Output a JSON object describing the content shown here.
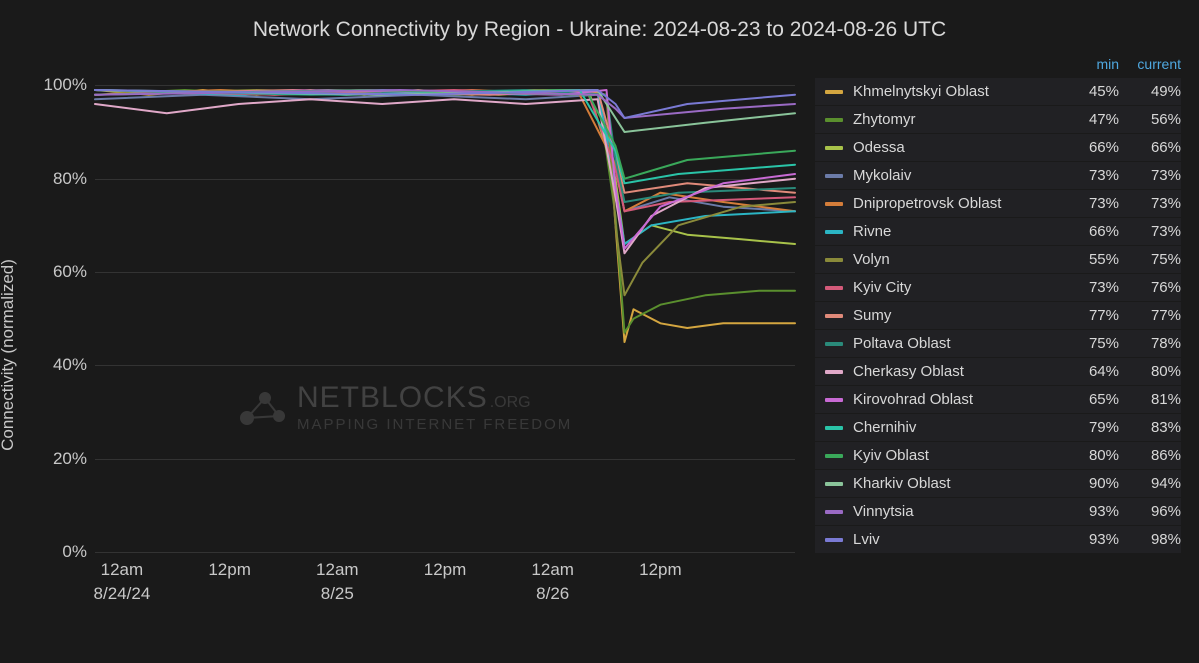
{
  "title": "Network Connectivity by Region - Ukraine: 2024-08-23 to 2024-08-26 UTC",
  "ylabel": "Connectivity (normalized)",
  "chart": {
    "type": "line",
    "background_color": "#1a1a1a",
    "grid_color": "#333333",
    "text_color": "#d0d0d0",
    "ylim": [
      0,
      105
    ],
    "ytick_step": 20,
    "yticks": [
      "0%",
      "20%",
      "40%",
      "60%",
      "80%",
      "100%"
    ],
    "ytick_values": [
      0,
      20,
      40,
      60,
      80,
      100
    ],
    "x_range_hours": 78,
    "xticks": [
      {
        "label": "12am",
        "date": "8/24/24",
        "hour": 3
      },
      {
        "label": "12pm",
        "date": "",
        "hour": 15
      },
      {
        "label": "12am",
        "date": "8/25",
        "hour": 27
      },
      {
        "label": "12pm",
        "date": "",
        "hour": 39
      },
      {
        "label": "12am",
        "date": "8/26",
        "hour": 51
      },
      {
        "label": "12pm",
        "date": "",
        "hour": 63
      }
    ],
    "line_width": 2,
    "title_fontsize": 21,
    "label_fontsize": 17,
    "tick_fontsize": 17
  },
  "legend_headers": {
    "min": "min",
    "current": "current"
  },
  "series": [
    {
      "name": "Khmelnytskyi Oblast",
      "color": "#d4a640",
      "min": "45%",
      "current": "49%",
      "points": [
        [
          0,
          99
        ],
        [
          6,
          98
        ],
        [
          12,
          99
        ],
        [
          18,
          98
        ],
        [
          24,
          99
        ],
        [
          30,
          98
        ],
        [
          36,
          99
        ],
        [
          42,
          98
        ],
        [
          48,
          99
        ],
        [
          54,
          99
        ],
        [
          57,
          98
        ],
        [
          58,
          70
        ],
        [
          59,
          45
        ],
        [
          60,
          52
        ],
        [
          63,
          49
        ],
        [
          66,
          48
        ],
        [
          70,
          49
        ],
        [
          74,
          49
        ],
        [
          78,
          49
        ]
      ]
    },
    {
      "name": "Zhytomyr",
      "color": "#5a8f2e",
      "min": "47%",
      "current": "56%",
      "points": [
        [
          0,
          98
        ],
        [
          10,
          99
        ],
        [
          20,
          98
        ],
        [
          30,
          99
        ],
        [
          40,
          98
        ],
        [
          50,
          99
        ],
        [
          56,
          99
        ],
        [
          58,
          72
        ],
        [
          59,
          47
        ],
        [
          60,
          50
        ],
        [
          63,
          53
        ],
        [
          68,
          55
        ],
        [
          74,
          56
        ],
        [
          78,
          56
        ]
      ]
    },
    {
      "name": "Odessa",
      "color": "#a8c24a",
      "min": "66%",
      "current": "66%",
      "points": [
        [
          0,
          99
        ],
        [
          15,
          98
        ],
        [
          30,
          99
        ],
        [
          45,
          98
        ],
        [
          55,
          99
        ],
        [
          58,
          80
        ],
        [
          59,
          66
        ],
        [
          62,
          70
        ],
        [
          66,
          68
        ],
        [
          72,
          67
        ],
        [
          78,
          66
        ]
      ]
    },
    {
      "name": "Mykolaiv",
      "color": "#6b7ba8",
      "min": "73%",
      "current": "73%",
      "points": [
        [
          0,
          97
        ],
        [
          12,
          98
        ],
        [
          24,
          97
        ],
        [
          36,
          98
        ],
        [
          48,
          97
        ],
        [
          56,
          98
        ],
        [
          58,
          82
        ],
        [
          59,
          73
        ],
        [
          64,
          76
        ],
        [
          70,
          74
        ],
        [
          78,
          73
        ]
      ]
    },
    {
      "name": "Dnipropetrovsk Oblast",
      "color": "#d47d3a",
      "min": "73%",
      "current": "73%",
      "points": [
        [
          0,
          98
        ],
        [
          14,
          99
        ],
        [
          28,
          98
        ],
        [
          42,
          99
        ],
        [
          54,
          98
        ],
        [
          58,
          83
        ],
        [
          59,
          73
        ],
        [
          63,
          77
        ],
        [
          70,
          75
        ],
        [
          78,
          73
        ]
      ]
    },
    {
      "name": "Rivne",
      "color": "#2bb5c4",
      "min": "66%",
      "current": "73%",
      "points": [
        [
          0,
          99
        ],
        [
          16,
          98
        ],
        [
          32,
          99
        ],
        [
          48,
          98
        ],
        [
          56,
          99
        ],
        [
          58,
          78
        ],
        [
          59,
          66
        ],
        [
          62,
          70
        ],
        [
          68,
          72
        ],
        [
          78,
          73
        ]
      ]
    },
    {
      "name": "Volyn",
      "color": "#8a8a3a",
      "min": "55%",
      "current": "75%",
      "points": [
        [
          0,
          98
        ],
        [
          18,
          99
        ],
        [
          36,
          98
        ],
        [
          50,
          99
        ],
        [
          57,
          98
        ],
        [
          58,
          70
        ],
        [
          59,
          55
        ],
        [
          61,
          62
        ],
        [
          65,
          70
        ],
        [
          72,
          74
        ],
        [
          78,
          75
        ]
      ]
    },
    {
      "name": "Kyiv City",
      "color": "#d45a7a",
      "min": "73%",
      "current": "76%",
      "points": [
        [
          0,
          99
        ],
        [
          20,
          98
        ],
        [
          40,
          99
        ],
        [
          55,
          98
        ],
        [
          58,
          82
        ],
        [
          59,
          73
        ],
        [
          64,
          75
        ],
        [
          78,
          76
        ]
      ]
    },
    {
      "name": "Sumy",
      "color": "#e08a7a",
      "min": "77%",
      "current": "77%",
      "points": [
        [
          0,
          98
        ],
        [
          22,
          99
        ],
        [
          44,
          98
        ],
        [
          56,
          99
        ],
        [
          58,
          85
        ],
        [
          59,
          77
        ],
        [
          66,
          79
        ],
        [
          78,
          77
        ]
      ]
    },
    {
      "name": "Poltava Oblast",
      "color": "#2a8a7a",
      "min": "75%",
      "current": "78%",
      "points": [
        [
          0,
          99
        ],
        [
          24,
          98
        ],
        [
          48,
          99
        ],
        [
          57,
          98
        ],
        [
          58,
          84
        ],
        [
          59,
          75
        ],
        [
          65,
          77
        ],
        [
          78,
          78
        ]
      ]
    },
    {
      "name": "Cherkasy Oblast",
      "color": "#e0a8c8",
      "min": "64%",
      "current": "80%",
      "points": [
        [
          0,
          96
        ],
        [
          8,
          94
        ],
        [
          16,
          96
        ],
        [
          24,
          97
        ],
        [
          32,
          96
        ],
        [
          40,
          97
        ],
        [
          48,
          96
        ],
        [
          56,
          97
        ],
        [
          58,
          76
        ],
        [
          59,
          64
        ],
        [
          62,
          72
        ],
        [
          68,
          78
        ],
        [
          78,
          80
        ]
      ]
    },
    {
      "name": "Kirovohrad Oblast",
      "color": "#c86ad4",
      "min": "65%",
      "current": "81%",
      "points": [
        [
          0,
          98
        ],
        [
          26,
          99
        ],
        [
          52,
          98
        ],
        [
          57,
          99
        ],
        [
          58,
          78
        ],
        [
          59,
          65
        ],
        [
          63,
          74
        ],
        [
          70,
          79
        ],
        [
          78,
          81
        ]
      ]
    },
    {
      "name": "Chernihiv",
      "color": "#2ac4a8",
      "min": "79%",
      "current": "83%",
      "points": [
        [
          0,
          99
        ],
        [
          28,
          98
        ],
        [
          54,
          99
        ],
        [
          58,
          86
        ],
        [
          59,
          79
        ],
        [
          65,
          81
        ],
        [
          78,
          83
        ]
      ]
    },
    {
      "name": "Kyiv Oblast",
      "color": "#3aa85a",
      "min": "80%",
      "current": "86%",
      "points": [
        [
          0,
          98
        ],
        [
          30,
          99
        ],
        [
          55,
          98
        ],
        [
          58,
          87
        ],
        [
          59,
          80
        ],
        [
          66,
          84
        ],
        [
          78,
          86
        ]
      ]
    },
    {
      "name": "Kharkiv Oblast",
      "color": "#8ac49a",
      "min": "90%",
      "current": "94%",
      "points": [
        [
          0,
          99
        ],
        [
          32,
          98
        ],
        [
          56,
          99
        ],
        [
          58,
          93
        ],
        [
          59,
          90
        ],
        [
          68,
          92
        ],
        [
          78,
          94
        ]
      ]
    },
    {
      "name": "Vinnytsia",
      "color": "#9a6ac4",
      "min": "93%",
      "current": "96%",
      "points": [
        [
          0,
          98
        ],
        [
          34,
          99
        ],
        [
          56,
          98
        ],
        [
          58,
          95
        ],
        [
          59,
          93
        ],
        [
          70,
          95
        ],
        [
          78,
          96
        ]
      ]
    },
    {
      "name": "Lviv",
      "color": "#7a7ad4",
      "min": "93%",
      "current": "98%",
      "points": [
        [
          0,
          99
        ],
        [
          36,
          98
        ],
        [
          56,
          99
        ],
        [
          58,
          96
        ],
        [
          59,
          93
        ],
        [
          66,
          96
        ],
        [
          78,
          98
        ]
      ]
    }
  ],
  "watermark": {
    "brand_main": "NETBLOCKS",
    "brand_suffix": ".ORG",
    "tagline": "MAPPING INTERNET FREEDOM"
  }
}
